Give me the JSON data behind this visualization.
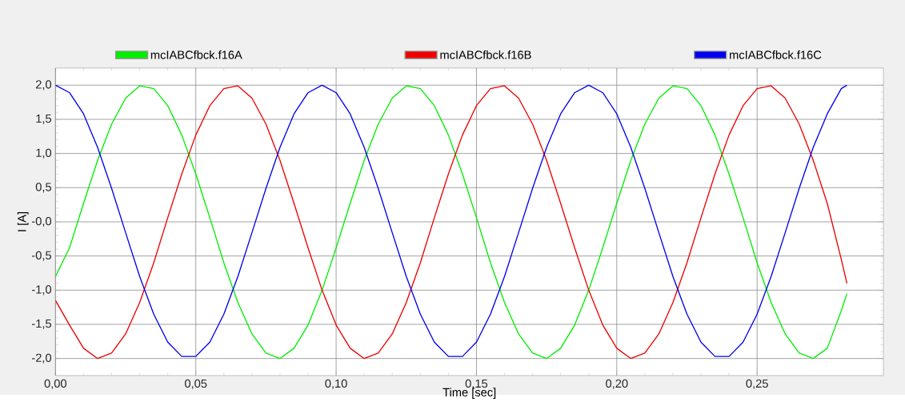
{
  "chart_data": {
    "type": "line",
    "xlabel": "Time [sec]",
    "ylabel": "I [A]",
    "x": [
      0,
      0.005,
      0.01,
      0.015,
      0.02,
      0.025,
      0.03,
      0.035,
      0.04,
      0.045,
      0.05,
      0.055,
      0.06,
      0.065,
      0.07,
      0.075,
      0.08,
      0.085,
      0.09,
      0.095,
      0.1,
      0.105,
      0.11,
      0.115,
      0.12,
      0.125,
      0.13,
      0.135,
      0.14,
      0.145,
      0.15,
      0.155,
      0.16,
      0.165,
      0.17,
      0.175,
      0.18,
      0.185,
      0.19,
      0.195,
      0.2,
      0.205,
      0.21,
      0.215,
      0.22,
      0.225,
      0.23,
      0.235,
      0.24,
      0.245,
      0.25,
      0.255,
      0.26,
      0.265,
      0.27,
      0.275,
      0.28,
      0.282
    ],
    "series": [
      {
        "name": "mcIABCfbck.f16A",
        "color": "#00ee00",
        "values": [
          -0.8,
          -0.38,
          0.27,
          0.9,
          1.43,
          1.81,
          1.99,
          1.95,
          1.7,
          1.27,
          0.7,
          0.06,
          -0.6,
          -1.18,
          -1.64,
          -1.92,
          -2.0,
          -1.85,
          -1.51,
          -1.0,
          -0.38,
          0.27,
          0.9,
          1.43,
          1.81,
          1.99,
          1.95,
          1.7,
          1.27,
          0.7,
          0.06,
          -0.6,
          -1.18,
          -1.64,
          -1.92,
          -2.0,
          -1.85,
          -1.51,
          -1.0,
          -0.38,
          0.27,
          0.9,
          1.43,
          1.81,
          1.99,
          1.95,
          1.7,
          1.27,
          0.7,
          0.06,
          -0.6,
          -1.18,
          -1.64,
          -1.92,
          -2.0,
          -1.85,
          -1.3,
          -1.05
        ]
      },
      {
        "name": "mcIABCfbck.f16B",
        "color": "#ee0000",
        "values": [
          -1.15,
          -1.51,
          -1.85,
          -2.0,
          -1.92,
          -1.64,
          -1.18,
          -0.6,
          0.06,
          0.7,
          1.27,
          1.7,
          1.95,
          1.99,
          1.81,
          1.43,
          0.9,
          0.27,
          -0.38,
          -1.0,
          -1.51,
          -1.85,
          -2.0,
          -1.92,
          -1.64,
          -1.18,
          -0.6,
          0.06,
          0.7,
          1.27,
          1.7,
          1.95,
          1.99,
          1.81,
          1.43,
          0.9,
          0.27,
          -0.38,
          -1.0,
          -1.51,
          -1.85,
          -2.0,
          -1.92,
          -1.64,
          -1.18,
          -0.6,
          0.06,
          0.7,
          1.27,
          1.7,
          1.95,
          1.99,
          1.81,
          1.43,
          0.9,
          0.27,
          -0.55,
          -0.9
        ]
      },
      {
        "name": "mcIABCfbck.f16C",
        "color": "#0000ee",
        "values": [
          2.0,
          1.89,
          1.58,
          1.09,
          0.49,
          -0.16,
          -0.8,
          -1.35,
          -1.76,
          -1.97,
          -1.97,
          -1.76,
          -1.35,
          -0.8,
          -0.16,
          0.49,
          1.09,
          1.58,
          1.89,
          2.0,
          1.89,
          1.58,
          1.09,
          0.49,
          -0.16,
          -0.8,
          -1.35,
          -1.76,
          -1.97,
          -1.97,
          -1.76,
          -1.35,
          -0.8,
          -0.16,
          0.49,
          1.09,
          1.58,
          1.89,
          2.0,
          1.89,
          1.58,
          1.09,
          0.49,
          -0.16,
          -0.8,
          -1.35,
          -1.76,
          -1.97,
          -1.97,
          -1.76,
          -1.35,
          -0.8,
          -0.16,
          0.49,
          1.09,
          1.58,
          1.95,
          2.0
        ]
      }
    ],
    "xlim": [
      0,
      0.295
    ],
    "ylim": [
      -2.25,
      2.25
    ],
    "xticks": [
      {
        "value": 0,
        "label": "0,00"
      },
      {
        "value": 0.05,
        "label": "0,05"
      },
      {
        "value": 0.1,
        "label": "0,10"
      },
      {
        "value": 0.15,
        "label": "0,15"
      },
      {
        "value": 0.2,
        "label": "0,20"
      },
      {
        "value": 0.25,
        "label": "0,25"
      }
    ],
    "yticks": [
      {
        "value": -2,
        "label": "-2,0"
      },
      {
        "value": -1.5,
        "label": "-1,5"
      },
      {
        "value": -1,
        "label": "-1,0"
      },
      {
        "value": -0.5,
        "label": "-0,5"
      },
      {
        "value": 0,
        "label": "-0,0"
      },
      {
        "value": 0.5,
        "label": "0,5"
      },
      {
        "value": 1,
        "label": "1,0"
      },
      {
        "value": 1.5,
        "label": "1,5"
      },
      {
        "value": 2,
        "label": "2,0"
      }
    ],
    "grid": true,
    "legend": "top",
    "marker": "none",
    "line_style": "solid"
  }
}
